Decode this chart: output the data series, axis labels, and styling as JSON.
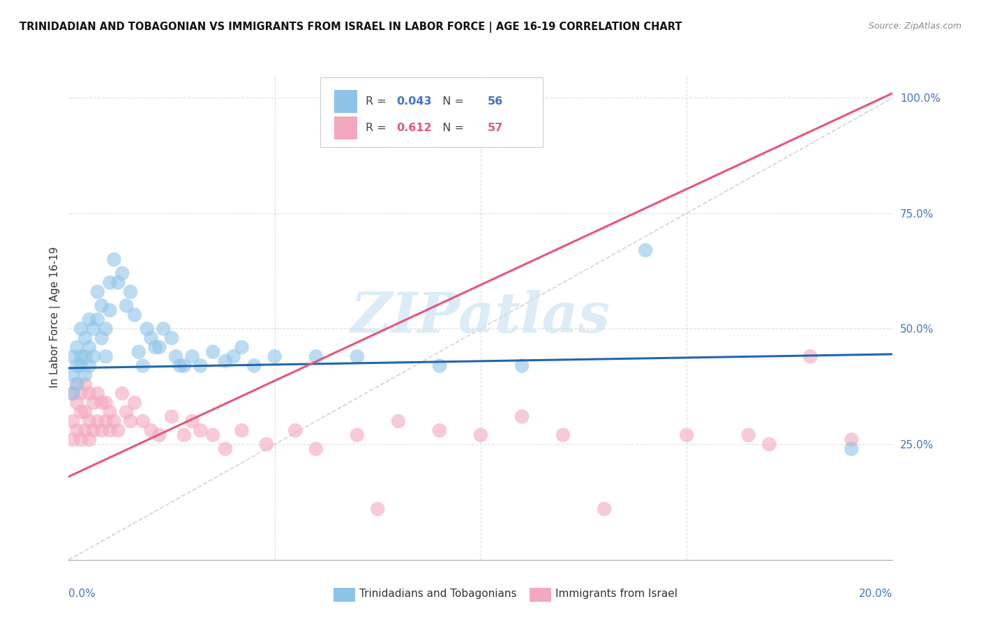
{
  "title": "TRINIDADIAN AND TOBAGONIAN VS IMMIGRANTS FROM ISRAEL IN LABOR FORCE | AGE 16-19 CORRELATION CHART",
  "source": "Source: ZipAtlas.com",
  "ylabel": "In Labor Force | Age 16-19",
  "ylabel_right_labels": [
    "100.0%",
    "75.0%",
    "50.0%",
    "25.0%"
  ],
  "ylabel_right_values": [
    1.0,
    0.75,
    0.5,
    0.25
  ],
  "blue_R": 0.043,
  "blue_N": 56,
  "pink_R": 0.612,
  "pink_N": 57,
  "blue_color": "#8ec4e8",
  "pink_color": "#f4a8bf",
  "blue_line_color": "#2166ac",
  "pink_line_color": "#e8547a",
  "diag_line_color": "#c8c8c8",
  "legend_label_blue": "Trinidadians and Tobagonians",
  "legend_label_pink": "Immigrants from Israel",
  "watermark": "ZIPatlas",
  "background_color": "#ffffff",
  "grid_color": "#dddddd",
  "xlim": [
    0.0,
    0.2
  ],
  "ylim": [
    0.0,
    1.05
  ],
  "blue_scatter_x": [
    0.001,
    0.001,
    0.001,
    0.002,
    0.002,
    0.002,
    0.003,
    0.003,
    0.003,
    0.004,
    0.004,
    0.004,
    0.005,
    0.005,
    0.005,
    0.006,
    0.006,
    0.007,
    0.007,
    0.008,
    0.008,
    0.009,
    0.009,
    0.01,
    0.01,
    0.011,
    0.012,
    0.013,
    0.014,
    0.015,
    0.016,
    0.017,
    0.018,
    0.019,
    0.02,
    0.021,
    0.022,
    0.023,
    0.025,
    0.026,
    0.027,
    0.028,
    0.03,
    0.032,
    0.035,
    0.038,
    0.04,
    0.042,
    0.045,
    0.05,
    0.06,
    0.07,
    0.09,
    0.11,
    0.14,
    0.19
  ],
  "blue_scatter_y": [
    0.44,
    0.4,
    0.36,
    0.46,
    0.42,
    0.38,
    0.5,
    0.44,
    0.42,
    0.48,
    0.44,
    0.4,
    0.52,
    0.46,
    0.42,
    0.5,
    0.44,
    0.58,
    0.52,
    0.55,
    0.48,
    0.5,
    0.44,
    0.6,
    0.54,
    0.65,
    0.6,
    0.62,
    0.55,
    0.58,
    0.53,
    0.45,
    0.42,
    0.5,
    0.48,
    0.46,
    0.46,
    0.5,
    0.48,
    0.44,
    0.42,
    0.42,
    0.44,
    0.42,
    0.45,
    0.43,
    0.44,
    0.46,
    0.42,
    0.44,
    0.44,
    0.44,
    0.42,
    0.42,
    0.67,
    0.24
  ],
  "pink_scatter_x": [
    0.001,
    0.001,
    0.001,
    0.002,
    0.002,
    0.002,
    0.003,
    0.003,
    0.003,
    0.004,
    0.004,
    0.004,
    0.005,
    0.005,
    0.005,
    0.006,
    0.006,
    0.007,
    0.007,
    0.008,
    0.008,
    0.009,
    0.009,
    0.01,
    0.01,
    0.011,
    0.012,
    0.013,
    0.014,
    0.015,
    0.016,
    0.018,
    0.02,
    0.022,
    0.025,
    0.028,
    0.03,
    0.032,
    0.035,
    0.038,
    0.042,
    0.048,
    0.055,
    0.06,
    0.07,
    0.075,
    0.08,
    0.09,
    0.1,
    0.11,
    0.12,
    0.13,
    0.15,
    0.165,
    0.17,
    0.18,
    0.19
  ],
  "pink_scatter_y": [
    0.36,
    0.3,
    0.26,
    0.38,
    0.34,
    0.28,
    0.36,
    0.32,
    0.26,
    0.38,
    0.32,
    0.28,
    0.36,
    0.3,
    0.26,
    0.34,
    0.28,
    0.36,
    0.3,
    0.34,
    0.28,
    0.34,
    0.3,
    0.32,
    0.28,
    0.3,
    0.28,
    0.36,
    0.32,
    0.3,
    0.34,
    0.3,
    0.28,
    0.27,
    0.31,
    0.27,
    0.3,
    0.28,
    0.27,
    0.24,
    0.28,
    0.25,
    0.28,
    0.24,
    0.27,
    0.11,
    0.3,
    0.28,
    0.27,
    0.31,
    0.27,
    0.11,
    0.27,
    0.27,
    0.25,
    0.44,
    0.26
  ],
  "blue_line_x0": 0.0,
  "blue_line_x1": 0.2,
  "blue_line_y0": 0.415,
  "blue_line_y1": 0.445,
  "pink_line_x0": 0.0,
  "pink_line_x1": 0.2,
  "pink_line_y0": 0.18,
  "pink_line_y1": 1.01
}
